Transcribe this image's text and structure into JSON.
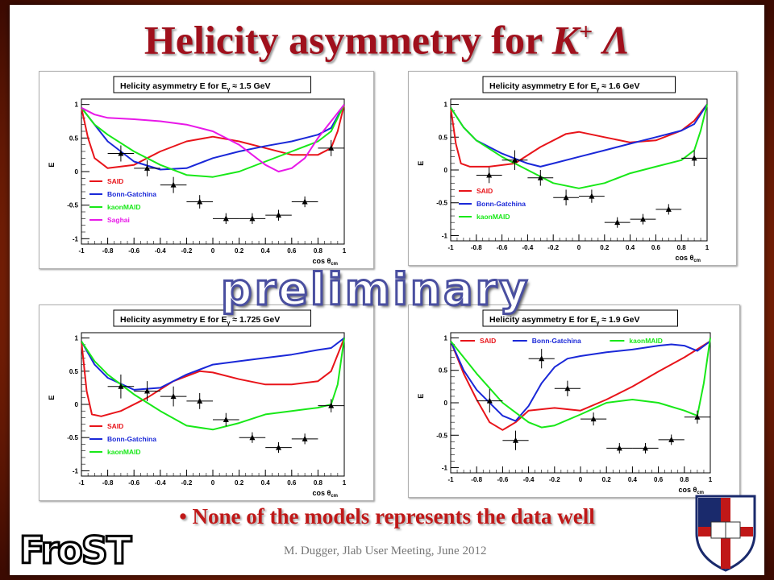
{
  "slide": {
    "title_prefix": "Helicity asymmetry for ",
    "title_K": "K",
    "title_sup": "+",
    "title_lambda": "Λ",
    "watermark": "preliminary",
    "bullet": "• None of the models represents the data well",
    "footer": "M. Dugger, Jlab User Meeting, June 2012",
    "logo_text": "FroST",
    "colors": {
      "title": "#a0101c",
      "said": "#e8141a",
      "bonn": "#1a28d8",
      "maid": "#18e818",
      "saghai": "#e818e8"
    }
  },
  "chart_data": [
    {
      "type": "line",
      "title": "Helicity asymmetry E  for E",
      "title_sub": "γ",
      "title_energy": "≈ 1.5 GeV",
      "xlabel": "cos θ",
      "xlabel_sub": "cm",
      "ylabel": "E",
      "xlim": [
        -1,
        1
      ],
      "ylim": [
        -1.08,
        1.08
      ],
      "xticks": [
        "-1",
        "-0.8",
        "-0.6",
        "-0.4",
        "-0.2",
        "0",
        "0.2",
        "0.4",
        "0.6",
        "0.8",
        "1"
      ],
      "yticks": [
        "1",
        "0.5",
        "0",
        "-0.5",
        "-1"
      ],
      "legend_position": "lower-left",
      "series": [
        {
          "name": "SAID",
          "color": "#e8141a",
          "x": [
            -1,
            -0.95,
            -0.9,
            -0.8,
            -0.6,
            -0.4,
            -0.2,
            0,
            0.2,
            0.4,
            0.6,
            0.8,
            0.9,
            0.95,
            1
          ],
          "y": [
            0.95,
            0.5,
            0.2,
            0.05,
            0.1,
            0.3,
            0.45,
            0.52,
            0.45,
            0.35,
            0.25,
            0.25,
            0.35,
            0.6,
            1
          ]
        },
        {
          "name": "Bonn-Gatchina",
          "color": "#1a28d8",
          "x": [
            -1,
            -0.9,
            -0.8,
            -0.6,
            -0.4,
            -0.2,
            0,
            0.2,
            0.4,
            0.6,
            0.8,
            0.9,
            1
          ],
          "y": [
            0.95,
            0.7,
            0.45,
            0.15,
            0.03,
            0.05,
            0.2,
            0.3,
            0.38,
            0.45,
            0.55,
            0.65,
            1
          ]
        },
        {
          "name": "kaonMAID",
          "color": "#18e818",
          "x": [
            -1,
            -0.9,
            -0.8,
            -0.6,
            -0.4,
            -0.2,
            0,
            0.2,
            0.4,
            0.6,
            0.8,
            0.9,
            1
          ],
          "y": [
            0.95,
            0.7,
            0.55,
            0.3,
            0.1,
            -0.05,
            -0.08,
            0.0,
            0.15,
            0.3,
            0.45,
            0.6,
            1
          ]
        },
        {
          "name": "Saghai",
          "color": "#e818e8",
          "x": [
            -1,
            -0.9,
            -0.8,
            -0.6,
            -0.4,
            -0.2,
            0,
            0.2,
            0.4,
            0.5,
            0.6,
            0.7,
            0.8,
            0.9,
            1
          ],
          "y": [
            0.95,
            0.85,
            0.8,
            0.78,
            0.75,
            0.7,
            0.6,
            0.4,
            0.1,
            0.0,
            0.05,
            0.2,
            0.5,
            0.75,
            1
          ]
        }
      ],
      "data_points": {
        "x": [
          -0.7,
          -0.5,
          -0.3,
          -0.1,
          0.1,
          0.3,
          0.5,
          0.7,
          0.9
        ],
        "y": [
          0.27,
          0.05,
          -0.2,
          -0.45,
          -0.7,
          -0.7,
          -0.65,
          -0.45,
          0.35
        ],
        "yerr": [
          0.12,
          0.12,
          0.12,
          0.1,
          0.08,
          0.08,
          0.08,
          0.08,
          0.12
        ]
      }
    },
    {
      "type": "line",
      "title": "Helicity asymmetry E  for E",
      "title_sub": "γ",
      "title_energy": "≈ 1.6 GeV",
      "xlabel": "cos θ",
      "xlabel_sub": "cm",
      "ylabel": "E",
      "xlim": [
        -1,
        1
      ],
      "ylim": [
        -1.08,
        1.08
      ],
      "xticks": [
        "-1",
        "-0.8",
        "-0.6",
        "-0.4",
        "-0.2",
        "0",
        "0.2",
        "0.4",
        "0.6",
        "0.8",
        "1"
      ],
      "yticks": [
        "1",
        "0.5",
        "0",
        "-0.5",
        "-1"
      ],
      "legend_position": "lower-left",
      "series": [
        {
          "name": "SAID",
          "color": "#e8141a",
          "x": [
            -1,
            -0.96,
            -0.92,
            -0.85,
            -0.7,
            -0.5,
            -0.3,
            -0.1,
            0,
            0.2,
            0.4,
            0.6,
            0.8,
            0.9,
            1
          ],
          "y": [
            0.95,
            0.4,
            0.1,
            0.05,
            0.05,
            0.1,
            0.35,
            0.55,
            0.58,
            0.5,
            0.42,
            0.45,
            0.6,
            0.75,
            1
          ]
        },
        {
          "name": "Bonn-Gatchina",
          "color": "#1a28d8",
          "x": [
            -1,
            -0.9,
            -0.8,
            -0.6,
            -0.4,
            -0.3,
            -0.2,
            0,
            0.2,
            0.4,
            0.6,
            0.8,
            0.9,
            1
          ],
          "y": [
            0.95,
            0.65,
            0.45,
            0.25,
            0.1,
            0.05,
            0.1,
            0.2,
            0.3,
            0.4,
            0.5,
            0.6,
            0.7,
            1
          ]
        },
        {
          "name": "kaonMAID",
          "color": "#18e818",
          "x": [
            -1,
            -0.9,
            -0.8,
            -0.6,
            -0.4,
            -0.2,
            0,
            0.2,
            0.4,
            0.6,
            0.8,
            0.9,
            0.95,
            1
          ],
          "y": [
            0.95,
            0.65,
            0.45,
            0.2,
            0.0,
            -0.2,
            -0.28,
            -0.2,
            -0.05,
            0.05,
            0.15,
            0.3,
            0.6,
            1
          ]
        }
      ],
      "data_points": {
        "x": [
          -0.7,
          -0.5,
          -0.3,
          -0.1,
          0.1,
          0.3,
          0.5,
          0.7,
          0.9
        ],
        "y": [
          -0.08,
          0.15,
          -0.12,
          -0.42,
          -0.4,
          -0.8,
          -0.75,
          -0.6,
          0.18
        ],
        "yerr": [
          0.12,
          0.15,
          0.12,
          0.12,
          0.1,
          0.08,
          0.08,
          0.08,
          0.12
        ]
      }
    },
    {
      "type": "line",
      "title": "Helicity asymmetry E  for E",
      "title_sub": "γ",
      "title_energy": "≈ 1.725 GeV",
      "xlabel": "cos θ",
      "xlabel_sub": "cm",
      "ylabel": "E",
      "xlim": [
        -1,
        1
      ],
      "ylim": [
        -1.08,
        1.08
      ],
      "xticks": [
        "-1",
        "-0.8",
        "-0.6",
        "-0.4",
        "-0.2",
        "0",
        "0.2",
        "0.4",
        "0.6",
        "0.8",
        "1"
      ],
      "yticks": [
        "1",
        "0.5",
        "0",
        "-0.5",
        "-1"
      ],
      "legend_position": "lower-left",
      "series": [
        {
          "name": "SAID",
          "color": "#e8141a",
          "x": [
            -1,
            -0.96,
            -0.92,
            -0.85,
            -0.7,
            -0.5,
            -0.3,
            -0.1,
            0,
            0.2,
            0.4,
            0.6,
            0.8,
            0.9,
            1
          ],
          "y": [
            0.95,
            0.2,
            -0.15,
            -0.18,
            -0.1,
            0.1,
            0.35,
            0.5,
            0.48,
            0.38,
            0.3,
            0.3,
            0.35,
            0.5,
            1
          ]
        },
        {
          "name": "Bonn-Gatchina",
          "color": "#1a28d8",
          "x": [
            -1,
            -0.9,
            -0.8,
            -0.6,
            -0.4,
            -0.2,
            0,
            0.2,
            0.4,
            0.6,
            0.8,
            0.9,
            1
          ],
          "y": [
            0.95,
            0.6,
            0.4,
            0.22,
            0.25,
            0.45,
            0.6,
            0.65,
            0.7,
            0.75,
            0.82,
            0.85,
            1
          ]
        },
        {
          "name": "kaonMAID",
          "color": "#18e818",
          "x": [
            -1,
            -0.9,
            -0.8,
            -0.6,
            -0.4,
            -0.2,
            0,
            0.2,
            0.4,
            0.6,
            0.8,
            0.9,
            0.95,
            1
          ],
          "y": [
            0.95,
            0.65,
            0.45,
            0.15,
            -0.1,
            -0.32,
            -0.38,
            -0.28,
            -0.15,
            -0.1,
            -0.05,
            0.0,
            0.3,
            1
          ]
        }
      ],
      "data_points": {
        "x": [
          -0.7,
          -0.5,
          -0.3,
          -0.1,
          0.1,
          0.3,
          0.5,
          0.7,
          0.9
        ],
        "y": [
          0.27,
          0.2,
          0.12,
          0.05,
          -0.23,
          -0.5,
          -0.65,
          -0.52,
          -0.02
        ],
        "yerr": [
          0.18,
          0.15,
          0.15,
          0.12,
          0.1,
          0.08,
          0.08,
          0.08,
          0.1
        ]
      }
    },
    {
      "type": "line",
      "title": "Helicity asymmetry E  for E",
      "title_sub": "γ",
      "title_energy": "≈ 1.9 GeV",
      "xlabel": "cos θ",
      "xlabel_sub": "cm",
      "ylabel": "E",
      "xlim": [
        -1,
        1
      ],
      "ylim": [
        -1.08,
        1.08
      ],
      "xticks": [
        "-1",
        "-0.8",
        "-0.6",
        "-0.4",
        "-0.2",
        "0",
        "0.2",
        "0.4",
        "0.6",
        "0.8",
        "1"
      ],
      "yticks": [
        "1",
        "0.5",
        "0",
        "-0.5",
        "-1"
      ],
      "legend_position": "top",
      "series": [
        {
          "name": "SAID",
          "color": "#e8141a",
          "x": [
            -1,
            -0.9,
            -0.8,
            -0.7,
            -0.6,
            -0.5,
            -0.4,
            -0.2,
            0,
            0.2,
            0.4,
            0.6,
            0.8,
            1
          ],
          "y": [
            0.95,
            0.45,
            0.05,
            -0.3,
            -0.42,
            -0.3,
            -0.12,
            -0.08,
            -0.12,
            0.05,
            0.25,
            0.48,
            0.7,
            0.95
          ]
        },
        {
          "name": "Bonn-Gatchina",
          "color": "#1a28d8",
          "x": [
            -1,
            -0.9,
            -0.8,
            -0.6,
            -0.5,
            -0.4,
            -0.3,
            -0.2,
            -0.1,
            0,
            0.2,
            0.4,
            0.6,
            0.7,
            0.8,
            0.9,
            1
          ],
          "y": [
            0.95,
            0.5,
            0.2,
            -0.2,
            -0.28,
            -0.05,
            0.3,
            0.55,
            0.68,
            0.72,
            0.78,
            0.82,
            0.88,
            0.9,
            0.88,
            0.8,
            0.95
          ]
        },
        {
          "name": "kaonMAID",
          "color": "#18e818",
          "x": [
            -1,
            -0.9,
            -0.8,
            -0.6,
            -0.4,
            -0.3,
            -0.2,
            0,
            0.2,
            0.4,
            0.6,
            0.8,
            0.9,
            0.95,
            1
          ],
          "y": [
            0.95,
            0.7,
            0.45,
            0.0,
            -0.3,
            -0.38,
            -0.35,
            -0.18,
            0.0,
            0.05,
            0.0,
            -0.12,
            -0.2,
            0.3,
            1
          ]
        }
      ],
      "data_points": {
        "x": [
          -0.7,
          -0.5,
          -0.3,
          -0.1,
          0.1,
          0.3,
          0.5,
          0.7,
          0.9
        ],
        "y": [
          0.03,
          -0.58,
          0.68,
          0.22,
          -0.25,
          -0.7,
          -0.7,
          -0.57,
          -0.22
        ],
        "yerr": [
          0.18,
          0.15,
          0.15,
          0.12,
          0.1,
          0.08,
          0.08,
          0.08,
          0.1
        ]
      }
    }
  ]
}
